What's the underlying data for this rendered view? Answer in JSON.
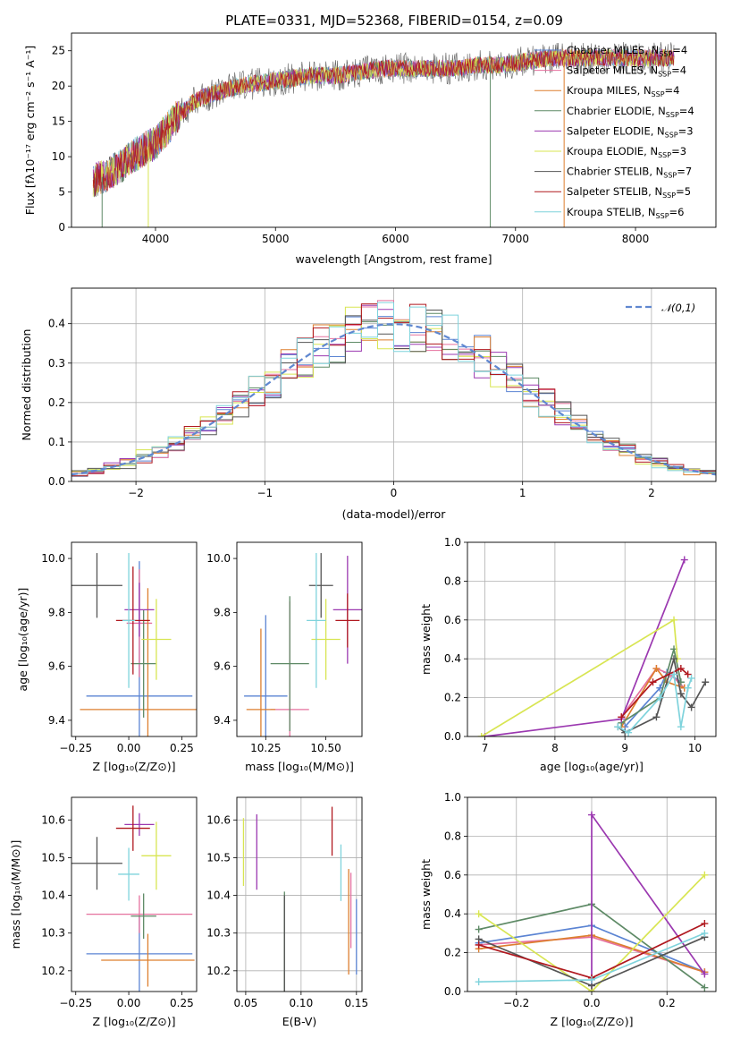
{
  "title": "PLATE=0331, MJD=52368, FIBERID=0154, z=0.09",
  "models": [
    {
      "name": "Chabrier MILES",
      "nssp": "4",
      "color": "#5b84d3"
    },
    {
      "name": "Salpeter MILES",
      "nssp": "4",
      "color": "#e6719e"
    },
    {
      "name": "Kroupa MILES",
      "nssp": "4",
      "color": "#dd7f2f"
    },
    {
      "name": "Chabrier ELODIE",
      "nssp": "4",
      "color": "#5e8a66"
    },
    {
      "name": "Salpeter ELODIE",
      "nssp": "3",
      "color": "#9b38b0"
    },
    {
      "name": "Kroupa ELODIE",
      "nssp": "3",
      "color": "#d8e552"
    },
    {
      "name": "Chabrier STELIB",
      "nssp": "7",
      "color": "#555555"
    },
    {
      "name": "Salpeter STELIB",
      "nssp": "5",
      "color": "#b0181f"
    },
    {
      "name": "Kroupa STELIB",
      "nssp": "6",
      "color": "#7fd3dc"
    }
  ],
  "legend_suffix": {
    "n": "N",
    "sub": "SSP"
  },
  "chart_data": [
    {
      "id": "spectrum",
      "type": "line",
      "xlabel": "wavelength [Angstrom, rest frame]",
      "ylabel": "Flux [fλ10⁻¹⁷ erg cm⁻² s⁻¹ A⁻¹]",
      "xlim": [
        3300,
        8670
      ],
      "ylim": [
        0,
        27.5
      ],
      "xticks": [
        4000,
        5000,
        6000,
        7000,
        8000
      ],
      "yticks": [
        0,
        5,
        10,
        15,
        20,
        25
      ],
      "continuum": {
        "x": [
          3480,
          3600,
          3700,
          3800,
          3900,
          4000,
          4100,
          4200,
          4300,
          4400,
          4500,
          4700,
          4900,
          5100,
          5300,
          5500,
          5700,
          5900,
          6100,
          6300,
          6500,
          6700,
          6900,
          7100,
          7300,
          7500,
          7700,
          7900,
          8100,
          8300
        ],
        "y": [
          6.5,
          7.5,
          8.5,
          10,
          11,
          12,
          14,
          16,
          17.5,
          18.5,
          19,
          20,
          20.5,
          21,
          21.5,
          21.5,
          22,
          22.5,
          22.5,
          22.5,
          22.5,
          23,
          23,
          23.5,
          24,
          24,
          24,
          24,
          24,
          24
        ]
      }
    },
    {
      "id": "residuals",
      "type": "histogram",
      "xlabel": "(data-model)/error",
      "ylabel": "Normed distribution",
      "xlim": [
        -2.5,
        2.5
      ],
      "ylim": [
        0,
        0.49
      ],
      "xticks": [
        -2,
        -1,
        0,
        1,
        2
      ],
      "yticks": [
        0,
        0.1,
        0.2,
        0.3,
        0.4
      ],
      "grid": true,
      "legend": "𝒩(0,1)",
      "legend_position": "top-right"
    },
    {
      "id": "age-vs-Z",
      "type": "scatter",
      "xlabel": "Z [log₁₀(Z/Z⊙)]",
      "ylabel": "age [log₁₀(age/yr)]",
      "xlim": [
        -0.27,
        0.32
      ],
      "ylim": [
        9.34,
        10.06
      ],
      "xticks": [
        -0.25,
        0.0,
        0.25
      ],
      "yticks": [
        9.4,
        9.6,
        9.8,
        10.0
      ],
      "points": [
        {
          "x": 0.05,
          "y": 9.49,
          "xerr": 0.25,
          "yerr": 0.5
        },
        {
          "x": 0.05,
          "y": 9.76,
          "xerr": 0.06,
          "yerr": 0.2
        },
        {
          "x": 0.09,
          "y": 9.44,
          "xerr": 0.32,
          "yerr": 0.45
        },
        {
          "x": 0.07,
          "y": 9.61,
          "xerr": 0.06,
          "yerr": 0.2
        },
        {
          "x": 0.05,
          "y": 9.81,
          "xerr": 0.07,
          "yerr": 0.1
        },
        {
          "x": 0.13,
          "y": 9.7,
          "xerr": 0.07,
          "yerr": 0.15
        },
        {
          "x": -0.15,
          "y": 9.9,
          "xerr": 0.12,
          "yerr": 0.12
        },
        {
          "x": 0.02,
          "y": 9.77,
          "xerr": 0.08,
          "yerr": 0.2
        },
        {
          "x": 0.0,
          "y": 9.77,
          "xerr": 0.03,
          "yerr": 0.25
        }
      ]
    },
    {
      "id": "age-vs-mass",
      "type": "scatter",
      "xlabel": "mass [log₁₀(M/M⊙)]",
      "ylabel": "",
      "xlim": [
        10.13,
        10.65
      ],
      "ylim": [
        9.34,
        10.06
      ],
      "xticks": [
        10.25,
        10.5
      ],
      "yticks": [
        9.4,
        9.6,
        9.8,
        10.0
      ],
      "points": [
        {
          "x": 10.25,
          "y": 9.49,
          "xerr": 0.09,
          "yerr": 0.3
        },
        {
          "x": 10.35,
          "y": 9.44,
          "xerr": 0.08,
          "yerr": 0.4
        },
        {
          "x": 10.23,
          "y": 9.44,
          "xerr": 0.06,
          "yerr": 0.3
        },
        {
          "x": 10.35,
          "y": 9.61,
          "xerr": 0.08,
          "yerr": 0.25
        },
        {
          "x": 10.59,
          "y": 9.81,
          "xerr": 0.06,
          "yerr": 0.2
        },
        {
          "x": 10.5,
          "y": 9.7,
          "xerr": 0.06,
          "yerr": 0.15
        },
        {
          "x": 10.48,
          "y": 9.9,
          "xerr": 0.05,
          "yerr": 0.12
        },
        {
          "x": 10.59,
          "y": 9.77,
          "xerr": 0.05,
          "yerr": 0.1
        },
        {
          "x": 10.46,
          "y": 9.77,
          "xerr": 0.04,
          "yerr": 0.25
        }
      ]
    },
    {
      "id": "mass-weight-vs-age",
      "type": "line",
      "xlabel": "age [log₁₀(age/yr)]",
      "ylabel": "mass weight",
      "xlim": [
        6.75,
        10.3
      ],
      "ylim": [
        0,
        1
      ],
      "xticks": [
        7,
        8,
        9,
        10
      ],
      "yticks": [
        0,
        0.2,
        0.4,
        0.6,
        0.8,
        1.0
      ],
      "grid": true,
      "series": [
        {
          "x": [
            9.0,
            9.5,
            9.6,
            9.8
          ],
          "y": [
            0.05,
            0.25,
            0.33,
            0.28
          ]
        },
        {
          "x": [
            8.95,
            9.45,
            9.65,
            9.85
          ],
          "y": [
            0.1,
            0.35,
            0.32,
            0.25
          ]
        },
        {
          "x": [
            8.95,
            9.45,
            9.6,
            9.85
          ],
          "y": [
            0.05,
            0.35,
            0.28,
            0.25
          ]
        },
        {
          "x": [
            8.95,
            9.5,
            9.7,
            9.8
          ],
          "y": [
            0.07,
            0.2,
            0.45,
            0.28
          ]
        },
        {
          "x": [
            7.0,
            8.95,
            9.85
          ],
          "y": [
            0.0,
            0.09,
            0.91
          ]
        },
        {
          "x": [
            6.95,
            9.7,
            9.75
          ],
          "y": [
            0.0,
            0.6,
            0.4
          ]
        },
        {
          "x": [
            8.9,
            9.0,
            9.45,
            9.7,
            9.8,
            9.95,
            10.15
          ],
          "y": [
            0.05,
            0.02,
            0.1,
            0.4,
            0.22,
            0.15,
            0.28
          ]
        },
        {
          "x": [
            8.95,
            9.4,
            9.8,
            9.9
          ],
          "y": [
            0.1,
            0.28,
            0.35,
            0.32
          ]
        },
        {
          "x": [
            8.9,
            9.05,
            9.5,
            9.7,
            9.8,
            9.9,
            9.95
          ],
          "y": [
            0.05,
            0.02,
            0.2,
            0.32,
            0.05,
            0.25,
            0.3
          ]
        }
      ]
    },
    {
      "id": "mass-vs-Z",
      "type": "scatter",
      "xlabel": "Z [log₁₀(Z/Z⊙)]",
      "ylabel": "mass [log₁₀(M/M⊙)]",
      "xlim": [
        -0.27,
        0.32
      ],
      "ylim": [
        10.145,
        10.66
      ],
      "xticks": [
        -0.25,
        0.0,
        0.25
      ],
      "yticks": [
        10.2,
        10.3,
        10.4,
        10.5,
        10.6
      ],
      "points": [
        {
          "x": 0.05,
          "y": 10.245,
          "xerr": 0.25,
          "yerr": 0.1
        },
        {
          "x": 0.05,
          "y": 10.35,
          "xerr": 0.25,
          "yerr": 0.05
        },
        {
          "x": 0.09,
          "y": 10.228,
          "xerr": 0.22,
          "yerr": 0.07
        },
        {
          "x": 0.07,
          "y": 10.345,
          "xerr": 0.06,
          "yerr": 0.06
        },
        {
          "x": 0.05,
          "y": 10.588,
          "xerr": 0.07,
          "yerr": 0.03
        },
        {
          "x": 0.13,
          "y": 10.505,
          "xerr": 0.07,
          "yerr": 0.09
        },
        {
          "x": -0.15,
          "y": 10.485,
          "xerr": 0.12,
          "yerr": 0.07
        },
        {
          "x": 0.02,
          "y": 10.578,
          "xerr": 0.08,
          "yerr": 0.06
        },
        {
          "x": 0.0,
          "y": 10.456,
          "xerr": 0.05,
          "yerr": 0.07
        }
      ]
    },
    {
      "id": "mass-vs-ebv",
      "type": "scatter",
      "xlabel": "E(B-V)",
      "ylabel": "",
      "xlim": [
        0.042,
        0.155
      ],
      "ylim": [
        10.145,
        10.66
      ],
      "xticks": [
        0.05,
        0.1,
        0.15
      ],
      "yticks": [
        10.2,
        10.3,
        10.4,
        10.5,
        10.6
      ],
      "grid": true,
      "points": [
        {
          "x": 0.15,
          "y": 10.29,
          "yerr": 0.1
        },
        {
          "x": 0.145,
          "y": 10.36,
          "yerr": 0.1
        },
        {
          "x": 0.143,
          "y": 10.33,
          "yerr": 0.14
        },
        {
          "x": 0.085,
          "y": 10.25,
          "yerr": 0.16
        },
        {
          "x": 0.06,
          "y": 10.515,
          "yerr": 0.1
        },
        {
          "x": 0.048,
          "y": 10.515,
          "yerr": 0.09
        },
        {
          "x": 0.085,
          "y": 10.25,
          "yerr": 0.15
        },
        {
          "x": 0.128,
          "y": 10.57,
          "yerr": 0.065
        },
        {
          "x": 0.136,
          "y": 10.46,
          "yerr": 0.075
        }
      ]
    },
    {
      "id": "mass-weight-vs-Z",
      "type": "line",
      "xlabel": "Z [log₁₀(Z/Z⊙)]",
      "ylabel": "mass weight",
      "xlim": [
        -0.33,
        0.33
      ],
      "ylim": [
        0,
        1
      ],
      "xticks": [
        -0.2,
        0.0,
        0.2
      ],
      "yticks": [
        0,
        0.2,
        0.4,
        0.6,
        0.8,
        1.0
      ],
      "grid": true,
      "series": [
        {
          "x": [
            -0.3,
            0.0,
            0.3
          ],
          "y": [
            0.25,
            0.34,
            0.1
          ]
        },
        {
          "x": [
            -0.3,
            0.0,
            0.3
          ],
          "y": [
            0.24,
            0.28,
            0.1
          ]
        },
        {
          "x": [
            -0.3,
            0.0,
            0.3
          ],
          "y": [
            0.22,
            0.29,
            0.1
          ]
        },
        {
          "x": [
            -0.3,
            0.0,
            0.3
          ],
          "y": [
            0.32,
            0.45,
            0.02
          ]
        },
        {
          "x": [
            0.0,
            0.0,
            0.3
          ],
          "y": [
            0.0,
            0.91,
            0.09
          ]
        },
        {
          "x": [
            -0.3,
            0.0,
            0.3
          ],
          "y": [
            0.4,
            0.0,
            0.6
          ]
        },
        {
          "x": [
            -0.3,
            0.0,
            0.3
          ],
          "y": [
            0.27,
            0.03,
            0.28
          ]
        },
        {
          "x": [
            -0.3,
            0.0,
            0.3
          ],
          "y": [
            0.24,
            0.07,
            0.35
          ]
        },
        {
          "x": [
            -0.3,
            0.0,
            0.3
          ],
          "y": [
            0.05,
            0.06,
            0.3
          ]
        }
      ]
    }
  ]
}
